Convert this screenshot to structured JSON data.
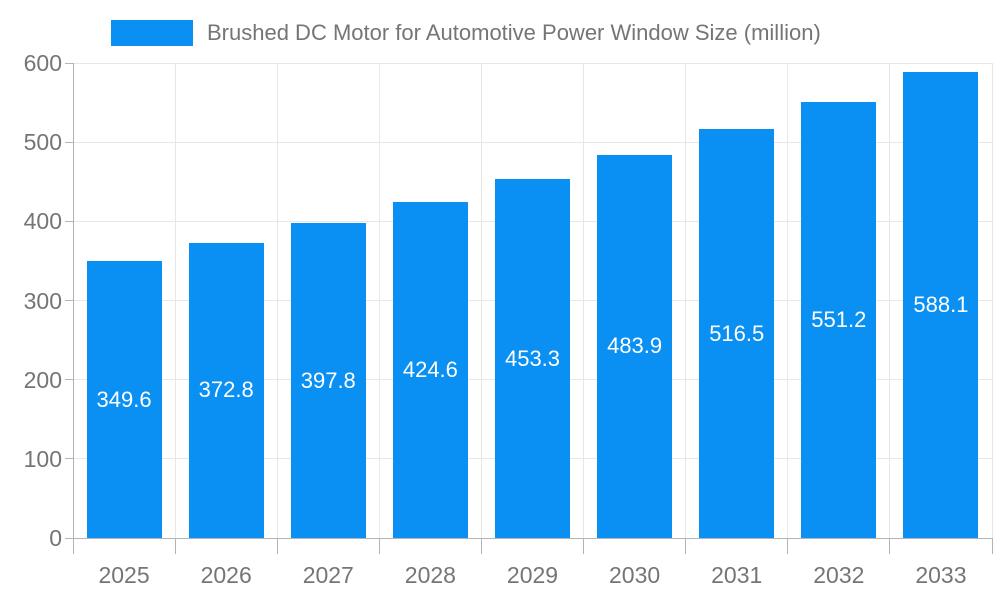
{
  "chart": {
    "legend_label": "Brushed DC Motor for Automotive Power Window Size (million)"
  },
  "chart_data": {
    "type": "bar",
    "title": "Brushed DC Motor for Automotive Power Window Size (million)",
    "categories": [
      "2025",
      "2026",
      "2027",
      "2028",
      "2029",
      "2030",
      "2031",
      "2032",
      "2033"
    ],
    "series": [
      {
        "name": "Brushed DC Motor for Automotive Power Window Size (million)",
        "values": [
          349.6,
          372.8,
          397.8,
          424.6,
          453.3,
          483.9,
          516.5,
          551.2,
          588.1
        ]
      }
    ],
    "xlabel": "",
    "ylabel": "",
    "ylim": [
      0,
      600
    ],
    "ytick_step": 100,
    "ytick_labels": [
      "0",
      "100",
      "200",
      "300",
      "400",
      "500",
      "600"
    ],
    "grid": true,
    "legend_position": "top",
    "value_label_position": "inside-center",
    "colors": {
      "bar": "#0a8ff2",
      "grid": "#e7e7e7",
      "axis": "#b3b3b3",
      "tick_text": "#757575",
      "value_label_text": "#ffffff",
      "background": "#ffffff"
    }
  }
}
